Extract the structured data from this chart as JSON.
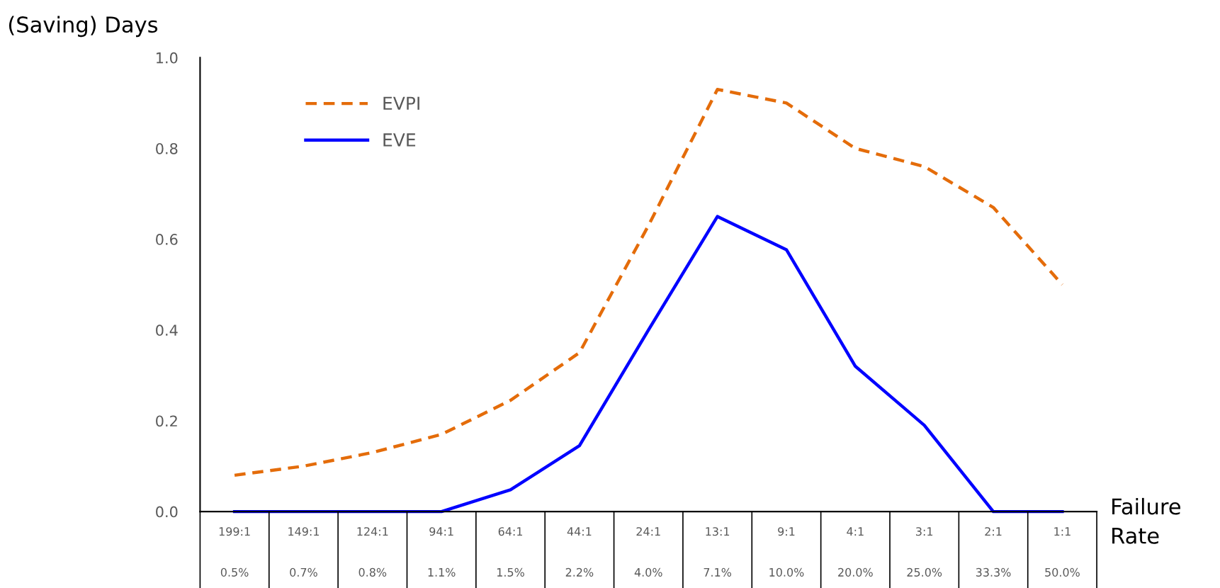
{
  "chart_data": {
    "type": "line",
    "ylabel": "(Saving) Days",
    "xlabel": "Failure\nRate",
    "categories": [
      "199:1\n0.5%",
      "149:1\n0.7%",
      "124:1\n0.8%",
      "94:1\n1.1%",
      "64:1\n1.5%",
      "44:1\n2.2%",
      "24:1\n4.0%",
      "13:1\n7.1%",
      "9:1\n10.0%",
      "4:1\n20.0%",
      "3:1\n25.0%",
      "2:1\n33.3%",
      "1:1\n50.0%"
    ],
    "series": [
      {
        "name": "EVPI",
        "color": "#e46c0a",
        "line_style": "dashed",
        "values": [
          0.08,
          0.1,
          0.13,
          0.17,
          0.245,
          0.35,
          0.63,
          0.93,
          0.9,
          0.8,
          0.76,
          0.67,
          0.5
        ]
      },
      {
        "name": "EVE",
        "color": "#0000ff",
        "line_style": "solid",
        "values": [
          0,
          0,
          0,
          0,
          0.048,
          0.145,
          0.4,
          0.65,
          0.577,
          0.32,
          0.19,
          0,
          0
        ]
      }
    ],
    "ylim": [
      0,
      1.0
    ],
    "yticks": [
      {
        "value": 0,
        "label": "0.0"
      },
      {
        "value": 0.2,
        "label": "0.2"
      },
      {
        "value": 0.4,
        "label": "0.4"
      },
      {
        "value": 0.6,
        "label": "0.6"
      },
      {
        "value": 0.8,
        "label": "0.8"
      },
      {
        "value": 1.0,
        "label": "1.0"
      }
    ],
    "grid": false,
    "legend": "top left",
    "marker": "none"
  }
}
